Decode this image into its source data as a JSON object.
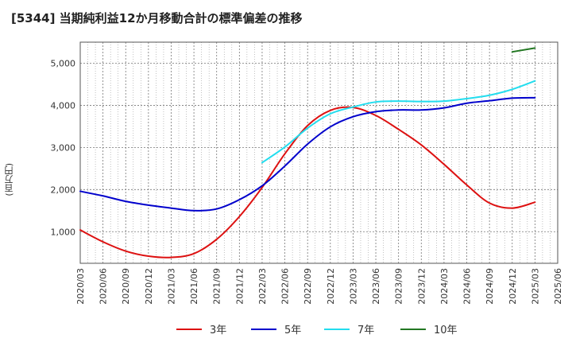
{
  "chart_data": {
    "type": "line",
    "title": "[5344]  当期純利益12か月移動合計の標準偏差の推移",
    "ylabel": "(百万円)",
    "ylim": [
      250,
      5500
    ],
    "yticks": [
      1000,
      2000,
      3000,
      4000,
      5000
    ],
    "ytick_labels": [
      "1,000",
      "2,000",
      "3,000",
      "4,000",
      "5,000"
    ],
    "xtick_labels": [
      "2020/03",
      "2020/06",
      "2020/09",
      "2020/12",
      "2021/03",
      "2021/06",
      "2021/09",
      "2021/12",
      "2022/03",
      "2022/06",
      "2022/09",
      "2022/12",
      "2023/03",
      "2023/06",
      "2023/09",
      "2023/12",
      "2024/03",
      "2024/06",
      "2024/09",
      "2024/12",
      "2025/03",
      "2025/06"
    ],
    "grid": true,
    "legend_position": "bottom",
    "series": [
      {
        "name": "3年",
        "color": "#dd1111",
        "x": [
          "2020/03",
          "2020/06",
          "2020/09",
          "2020/12",
          "2021/03",
          "2021/06",
          "2021/09",
          "2021/12",
          "2022/03",
          "2022/06",
          "2022/09",
          "2022/12",
          "2023/03",
          "2023/06",
          "2023/09",
          "2023/12",
          "2024/03",
          "2024/06",
          "2024/09",
          "2024/12",
          "2025/03"
        ],
        "values": [
          1040,
          760,
          540,
          420,
          390,
          480,
          820,
          1360,
          2050,
          2850,
          3520,
          3880,
          3950,
          3760,
          3430,
          3060,
          2600,
          2110,
          1680,
          1560,
          1700
        ]
      },
      {
        "name": "5年",
        "color": "#0000cc",
        "x": [
          "2020/03",
          "2020/06",
          "2020/09",
          "2020/12",
          "2021/03",
          "2021/06",
          "2021/09",
          "2021/12",
          "2022/03",
          "2022/06",
          "2022/09",
          "2022/12",
          "2023/03",
          "2023/06",
          "2023/09",
          "2023/12",
          "2024/03",
          "2024/06",
          "2024/09",
          "2024/12",
          "2025/03"
        ],
        "values": [
          1960,
          1850,
          1720,
          1630,
          1560,
          1500,
          1540,
          1760,
          2090,
          2560,
          3080,
          3490,
          3730,
          3850,
          3890,
          3890,
          3940,
          4050,
          4110,
          4170,
          4180
        ]
      },
      {
        "name": "7年",
        "color": "#22ddee",
        "x": [
          "2022/03",
          "2022/06",
          "2022/09",
          "2022/12",
          "2023/03",
          "2023/06",
          "2023/09",
          "2023/12",
          "2024/03",
          "2024/06",
          "2024/09",
          "2024/12",
          "2025/03"
        ],
        "values": [
          2640,
          3010,
          3460,
          3800,
          3960,
          4080,
          4100,
          4090,
          4100,
          4160,
          4240,
          4380,
          4580
        ]
      },
      {
        "name": "10年",
        "color": "#227722",
        "x": [
          "2024/12",
          "2025/03"
        ],
        "values": [
          5270,
          5360
        ]
      }
    ]
  }
}
